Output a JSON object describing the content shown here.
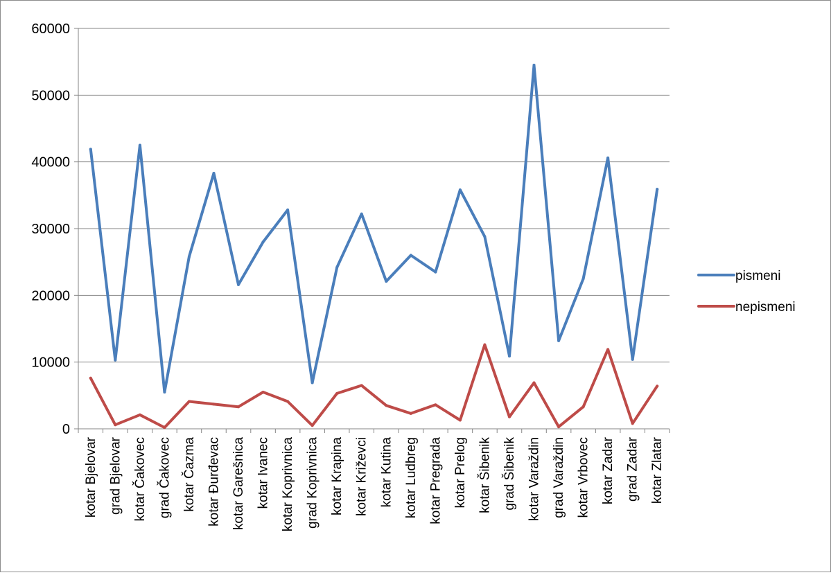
{
  "chart_data": {
    "type": "line",
    "categories": [
      "kotar Bjelovar",
      "grad Bjelovar",
      "kotar Čakovec",
      "grad Čakovec",
      "kotar Čazma",
      "kotar Đurđevac",
      "kotar Garešnica",
      "kotar Ivanec",
      "kotar Koprivnica",
      "grad Koprivnica",
      "kotar Krapina",
      "kotar Križevci",
      "kotar Kutina",
      "kotar Ludbreg",
      "kotar Pregrada",
      "kotar Prelog",
      "kotar Šibenik",
      "grad Šibenik",
      "kotar Varaždin",
      "grad Varaždin",
      "kotar Vrbovec",
      "kotar Zadar",
      "grad Zadar",
      "kotar Zlatar"
    ],
    "series": [
      {
        "name": "pismeni",
        "color": "#4a7ebb",
        "values": [
          41900,
          10300,
          42500,
          5500,
          25800,
          38300,
          21600,
          28000,
          32800,
          6900,
          24200,
          32200,
          22100,
          26000,
          23500,
          35800,
          28800,
          10900,
          54500,
          13200,
          22500,
          40600,
          10400,
          35900
        ]
      },
      {
        "name": "nepismeni",
        "color": "#be4b48",
        "values": [
          7600,
          600,
          2100,
          200,
          4100,
          3700,
          3300,
          5500,
          4100,
          500,
          5300,
          6500,
          3500,
          2300,
          3600,
          1300,
          12600,
          1800,
          6900,
          300,
          3300,
          11900,
          800,
          6400
        ]
      }
    ],
    "title": "",
    "xlabel": "",
    "ylabel": "",
    "ylim": [
      0,
      60000
    ],
    "yticks": [
      "0",
      "10000",
      "20000",
      "30000",
      "40000",
      "50000",
      "60000"
    ],
    "grid": true,
    "legend": "right"
  }
}
